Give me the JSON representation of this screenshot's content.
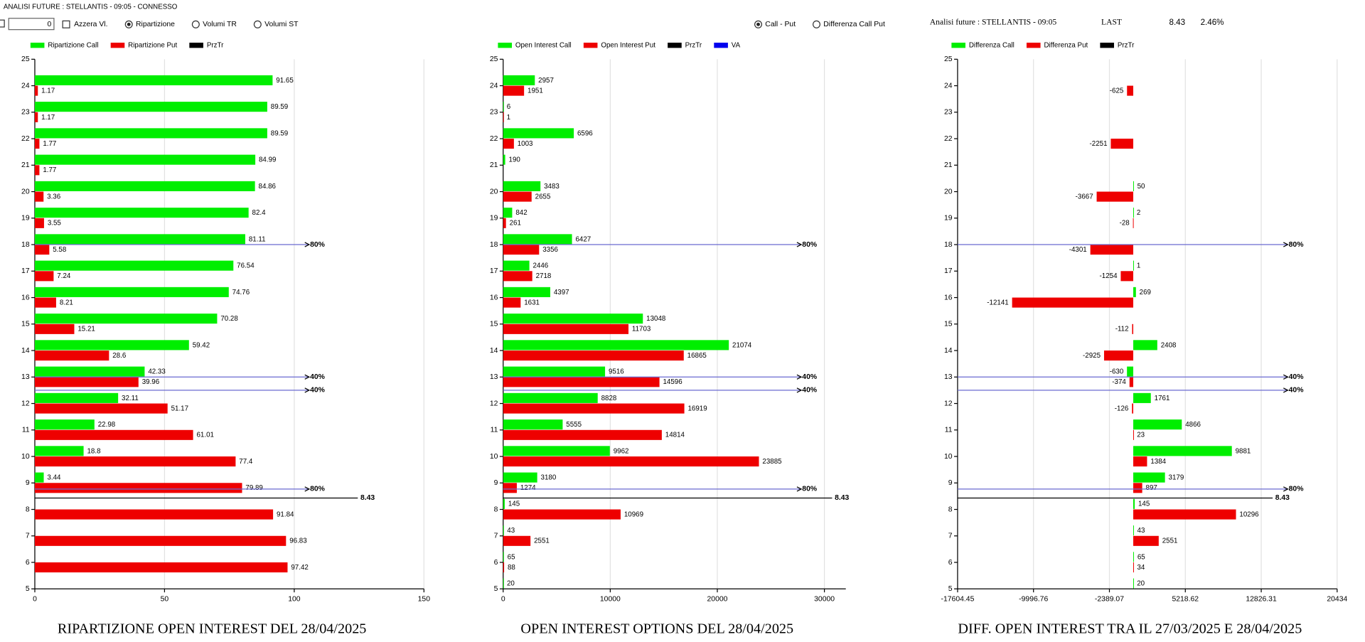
{
  "toolbar": {
    "title": "ANALISI FUTURE : STELLANTIS - 09:05 - CONNESSO",
    "input": "0",
    "checkboxes": [
      {
        "label": "Azzera Vl.",
        "checked": false
      }
    ],
    "radios_left": [
      {
        "label": "Ripartizione",
        "checked": true
      },
      {
        "label": "Volumi TR",
        "checked": false
      },
      {
        "label": "Volumi ST",
        "checked": false
      }
    ],
    "radios_right": [
      {
        "label": "Call - Put",
        "checked": true
      },
      {
        "label": "Differenza Call Put",
        "checked": false
      }
    ],
    "info": {
      "label": "Analisi future : STELLANTIS - 09:05",
      "last_label": "LAST",
      "last": "8.43",
      "change": "2.46%"
    }
  },
  "chart_data": [
    {
      "type": "bar",
      "orientation": "horizontal",
      "title": "RIPARTIZIONE OPEN INTEREST DEL 28/04/2025",
      "y": [
        24,
        23,
        22,
        21,
        20,
        19,
        18,
        17,
        16,
        15,
        14,
        13,
        12,
        11,
        10,
        9,
        8,
        7,
        6
      ],
      "ylim": [
        5,
        25
      ],
      "yticks": [
        5,
        6,
        7,
        8,
        9,
        10,
        11,
        12,
        13,
        14,
        15,
        16,
        17,
        18,
        19,
        20,
        21,
        22,
        23,
        24,
        25
      ],
      "xlim": [
        0,
        150
      ],
      "xticks": [
        0,
        50,
        100,
        150
      ],
      "grid": true,
      "series": [
        {
          "name": "Ripartizione Call",
          "color": "#00ee00",
          "values": [
            91.65,
            89.59,
            89.59,
            84.99,
            84.86,
            82.4,
            81.11,
            76.54,
            74.76,
            70.28,
            59.42,
            42.33,
            32.11,
            22.98,
            18.8,
            3.44,
            null,
            null,
            null
          ]
        },
        {
          "name": "Ripartizione Put",
          "color": "#ee0000",
          "values": [
            1.17,
            1.17,
            1.77,
            1.77,
            3.36,
            3.55,
            5.58,
            7.24,
            8.21,
            15.21,
            28.6,
            39.96,
            51.17,
            61.01,
            77.4,
            79.89,
            91.84,
            96.83,
            97.42
          ]
        },
        {
          "name": "PrzTr",
          "color": "#000000",
          "values": [
            8.43
          ]
        }
      ],
      "ref_lines": [
        {
          "value": 18,
          "label": "80%"
        },
        {
          "value": 13,
          "label": "40%"
        },
        {
          "value": 12.5,
          "label": "40%"
        },
        {
          "value": 8.77,
          "label": "80%"
        }
      ]
    },
    {
      "type": "bar",
      "orientation": "horizontal",
      "title": "OPEN INTEREST OPTIONS DEL 28/04/2025",
      "y": [
        24,
        23,
        22,
        21,
        20,
        19,
        18,
        17,
        16,
        15,
        14,
        13,
        12,
        11,
        10,
        9,
        8,
        7,
        6,
        5
      ],
      "ylim": [
        5,
        25
      ],
      "yticks": [
        5,
        6,
        7,
        8,
        9,
        10,
        11,
        12,
        13,
        14,
        15,
        16,
        17,
        18,
        19,
        20,
        21,
        22,
        23,
        24,
        25
      ],
      "xlim": [
        0,
        32000
      ],
      "xticks": [
        0,
        10000,
        20000,
        30000
      ],
      "grid": true,
      "series": [
        {
          "name": "Open Interest Call",
          "color": "#00ee00",
          "values": [
            2957,
            6,
            6596,
            190,
            3483,
            842,
            6427,
            2446,
            4397,
            13048,
            21074,
            9516,
            8828,
            5555,
            9962,
            3180,
            145,
            43,
            65,
            20
          ]
        },
        {
          "name": "Open Interest Put",
          "color": "#ee0000",
          "values": [
            1951,
            1,
            1003,
            null,
            2655,
            261,
            3356,
            2718,
            1631,
            11703,
            16865,
            14596,
            16919,
            14814,
            23885,
            1274,
            10969,
            2551,
            88,
            null
          ]
        },
        {
          "name": "PrzTr",
          "color": "#000000",
          "values": [
            8.43
          ]
        },
        {
          "name": "VA",
          "color": "#0000ee"
        }
      ],
      "ref_lines": [
        {
          "value": 18,
          "label": "80%"
        },
        {
          "value": 13,
          "label": "40%"
        },
        {
          "value": 12.5,
          "label": "40%"
        },
        {
          "value": 8.77,
          "label": "80%"
        }
      ]
    },
    {
      "type": "bar",
      "orientation": "horizontal",
      "title": "DIFF. OPEN INTEREST TRA IL 27/03/2025 E 28/04/2025",
      "y": [
        24,
        23,
        22,
        21,
        20,
        19,
        18,
        17,
        16,
        15,
        14,
        13,
        12,
        11,
        10,
        9,
        8,
        7,
        6,
        5
      ],
      "ylim": [
        5,
        25
      ],
      "yticks": [
        5,
        6,
        7,
        8,
        9,
        10,
        11,
        12,
        13,
        14,
        15,
        16,
        17,
        18,
        19,
        20,
        21,
        22,
        23,
        24,
        25
      ],
      "xlim": [
        -17604.45,
        20434
      ],
      "xticks": [
        -17604.45,
        -9996.76,
        -2389.07,
        5218.62,
        12826.31,
        20434
      ],
      "grid": true,
      "series": [
        {
          "name": "Differenza Call",
          "color": "#00ee00",
          "values": [
            null,
            null,
            null,
            null,
            50,
            2,
            null,
            1,
            269,
            null,
            2408,
            -630,
            1761,
            4866,
            9881,
            3179,
            145,
            43,
            65,
            20
          ]
        },
        {
          "name": "Differenza Put",
          "color": "#ee0000",
          "values": [
            -625,
            null,
            -2251,
            null,
            -3667,
            -28,
            -4301,
            -1254,
            -12141,
            -112,
            -2925,
            -374,
            -126,
            23,
            1384,
            897,
            10296,
            2551,
            34,
            null
          ]
        },
        {
          "name": "PrzTr",
          "color": "#000000",
          "values": [
            8.43
          ]
        }
      ],
      "ref_lines": [
        {
          "value": 18,
          "label": "80%"
        },
        {
          "value": 13,
          "label": "40%"
        },
        {
          "value": 12.5,
          "label": "40%"
        },
        {
          "value": 8.77,
          "label": "80%"
        }
      ]
    }
  ]
}
